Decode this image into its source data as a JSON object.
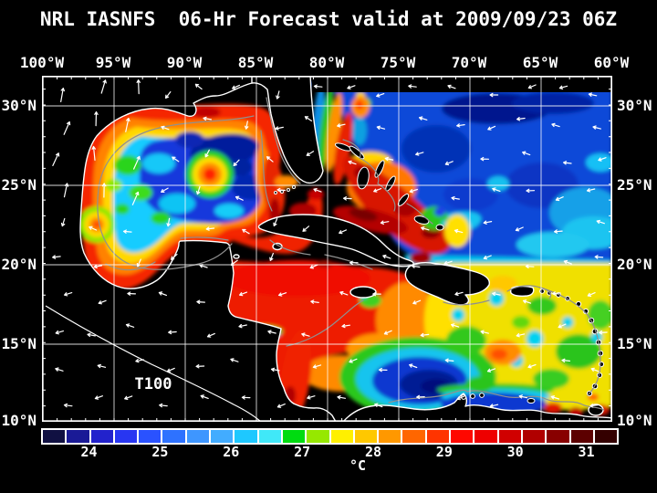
{
  "header": {
    "title": "NRL IASNFS  06-Hr Forecast valid at 2009/09/23 06Z"
  },
  "map": {
    "top_axis_labels": [
      "100°W",
      "95°W",
      "90°W",
      "85°W",
      "80°W",
      "75°W",
      "70°W",
      "65°W",
      "60°W"
    ],
    "left_axis_labels": [
      "30°N",
      "25°N",
      "20°N",
      "15°N",
      "10°N"
    ],
    "right_axis_labels": [
      "30°N",
      "25°N",
      "20°N",
      "15°N",
      "10°N"
    ],
    "annotation_label": "T100"
  },
  "colorbar": {
    "unit_label": "°C",
    "tick_labels": [
      "24",
      "25",
      "26",
      "27",
      "28",
      "29",
      "30",
      "31"
    ],
    "segment_colors": [
      "#101042",
      "#1a1a96",
      "#2222cc",
      "#2836f2",
      "#2a52ff",
      "#2e72ff",
      "#3e96ff",
      "#42acff",
      "#1ec8ff",
      "#40e8f8",
      "#00dc10",
      "#96e800",
      "#fff000",
      "#ffc800",
      "#ff9800",
      "#ff6600",
      "#ff3400",
      "#ff0800",
      "#ee0000",
      "#d00000",
      "#b00000",
      "#880000",
      "#5c0000",
      "#340000"
    ]
  }
}
